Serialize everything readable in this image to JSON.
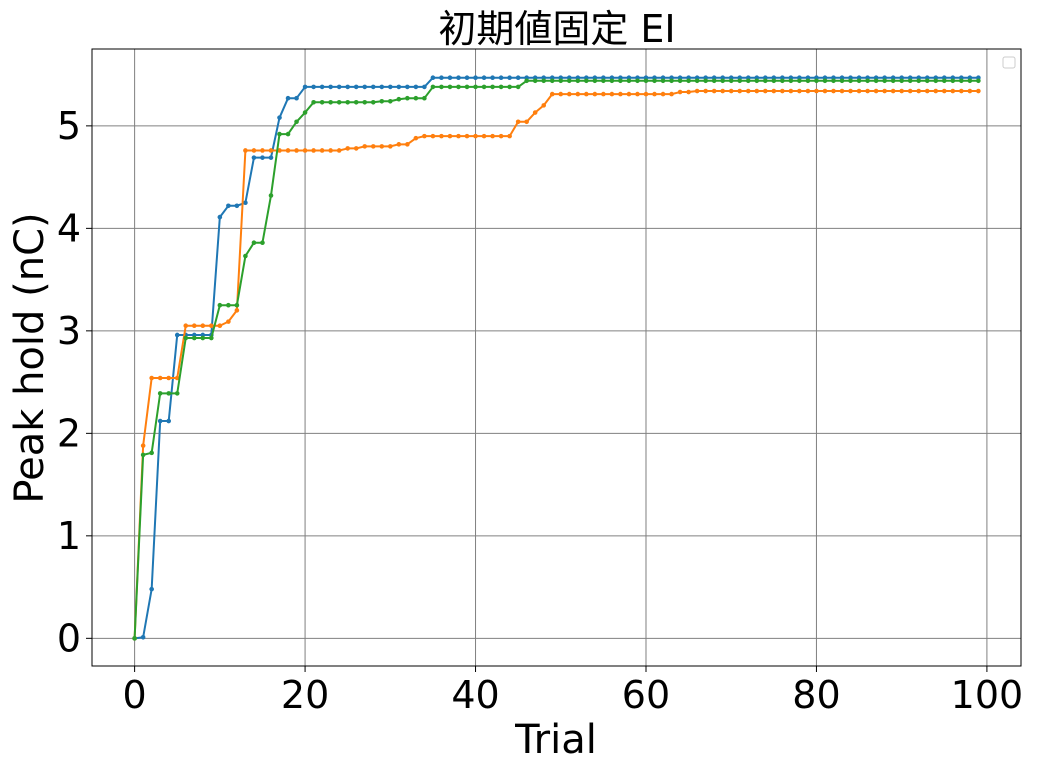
{
  "chart_data": {
    "type": "line",
    "title": "初期値固定 EI",
    "xlabel": "Trial",
    "ylabel": "Peak hold (nC)",
    "xlim": [
      -5,
      104
    ],
    "ylim": [
      -0.27,
      5.75
    ],
    "xticks": [
      0,
      20,
      40,
      60,
      80,
      100
    ],
    "yticks": [
      0,
      1,
      2,
      3,
      4,
      5
    ],
    "grid": true,
    "legend": "top-right (empty)",
    "colors": {
      "blue": "#1f77b4",
      "orange": "#ff7f0e",
      "green": "#2ca02c",
      "grid": "#808080"
    },
    "series": [
      {
        "color": "#1f77b4",
        "steps": [
          [
            0,
            0.0
          ],
          [
            1,
            0.01
          ],
          [
            2,
            0.48
          ],
          [
            3,
            2.12
          ],
          [
            5,
            2.96
          ],
          [
            10,
            4.11
          ],
          [
            11,
            4.22
          ],
          [
            13,
            4.25
          ],
          [
            14,
            4.69
          ],
          [
            17,
            5.08
          ],
          [
            18,
            5.27
          ],
          [
            20,
            5.38
          ],
          [
            35,
            5.47
          ]
        ]
      },
      {
        "color": "#ff7f0e",
        "steps": [
          [
            0,
            0.0
          ],
          [
            1,
            1.88
          ],
          [
            2,
            2.54
          ],
          [
            6,
            3.05
          ],
          [
            11,
            3.09
          ],
          [
            12,
            3.2
          ],
          [
            13,
            4.76
          ],
          [
            25,
            4.78
          ],
          [
            27,
            4.8
          ],
          [
            31,
            4.82
          ],
          [
            33,
            4.88
          ],
          [
            34,
            4.9
          ],
          [
            45,
            5.04
          ],
          [
            47,
            5.13
          ],
          [
            48,
            5.2
          ],
          [
            49,
            5.31
          ],
          [
            64,
            5.33
          ],
          [
            66,
            5.34
          ]
        ]
      },
      {
        "color": "#2ca02c",
        "steps": [
          [
            0,
            0.0
          ],
          [
            1,
            1.79
          ],
          [
            2,
            1.81
          ],
          [
            3,
            2.39
          ],
          [
            6,
            2.93
          ],
          [
            10,
            3.25
          ],
          [
            13,
            3.73
          ],
          [
            14,
            3.86
          ],
          [
            16,
            4.32
          ],
          [
            17,
            4.92
          ],
          [
            19,
            5.04
          ],
          [
            20,
            5.13
          ],
          [
            21,
            5.23
          ],
          [
            29,
            5.24
          ],
          [
            31,
            5.26
          ],
          [
            32,
            5.27
          ],
          [
            35,
            5.38
          ],
          [
            46,
            5.44
          ]
        ]
      }
    ],
    "n_trials": 100
  }
}
